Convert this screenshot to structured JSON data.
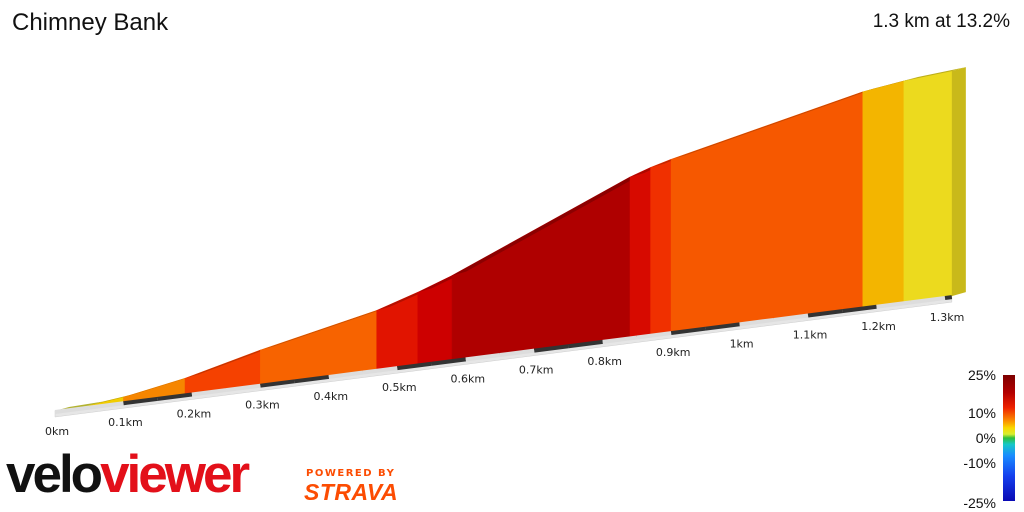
{
  "segment": {
    "name": "Chimney Bank",
    "summary": "1.3 km at 13.2%"
  },
  "chart_data": {
    "type": "area",
    "title": "Chimney Bank",
    "xlabel": "",
    "ylabel": "",
    "distance_unit": "km",
    "x_ticks": [
      "0km",
      "0.1km",
      "0.2km",
      "0.3km",
      "0.4km",
      "0.5km",
      "0.6km",
      "0.7km",
      "0.8km",
      "0.9km",
      "1km",
      "1.1km",
      "1.2km",
      "1.3km"
    ],
    "x_tick_values": [
      0,
      0.1,
      0.2,
      0.3,
      0.4,
      0.5,
      0.6,
      0.7,
      0.8,
      0.9,
      1.0,
      1.1,
      1.2,
      1.3
    ],
    "xlim": [
      0,
      1.3
    ],
    "segments": [
      {
        "start": 0.0,
        "end": 0.05,
        "grade": 1.5
      },
      {
        "start": 0.05,
        "end": 0.1,
        "grade": 5
      },
      {
        "start": 0.1,
        "end": 0.19,
        "grade": 8
      },
      {
        "start": 0.19,
        "end": 0.3,
        "grade": 11
      },
      {
        "start": 0.3,
        "end": 0.47,
        "grade": 9.5
      },
      {
        "start": 0.47,
        "end": 0.53,
        "grade": 14
      },
      {
        "start": 0.53,
        "end": 0.58,
        "grade": 16
      },
      {
        "start": 0.58,
        "end": 0.84,
        "grade": 19
      },
      {
        "start": 0.84,
        "end": 0.87,
        "grade": 15
      },
      {
        "start": 0.87,
        "end": 0.9,
        "grade": 12
      },
      {
        "start": 0.9,
        "end": 1.18,
        "grade": 10
      },
      {
        "start": 1.18,
        "end": 1.24,
        "grade": 6
      },
      {
        "start": 1.24,
        "end": 1.31,
        "grade": 3.5
      }
    ],
    "legend": {
      "placement": "bottom-right",
      "labels": [
        "25%",
        "10%",
        "0%",
        "-10%",
        "-25%"
      ],
      "values": [
        25,
        10,
        0,
        -10,
        -25
      ]
    }
  },
  "branding": {
    "logo_left": "velo",
    "logo_right": "viewer",
    "powered_by": "POWERED BY",
    "strava": "STRAVA"
  },
  "colors": {
    "logo_dark": "#111111",
    "logo_red": "#e3101a",
    "strava_orange": "#fc4c02"
  }
}
